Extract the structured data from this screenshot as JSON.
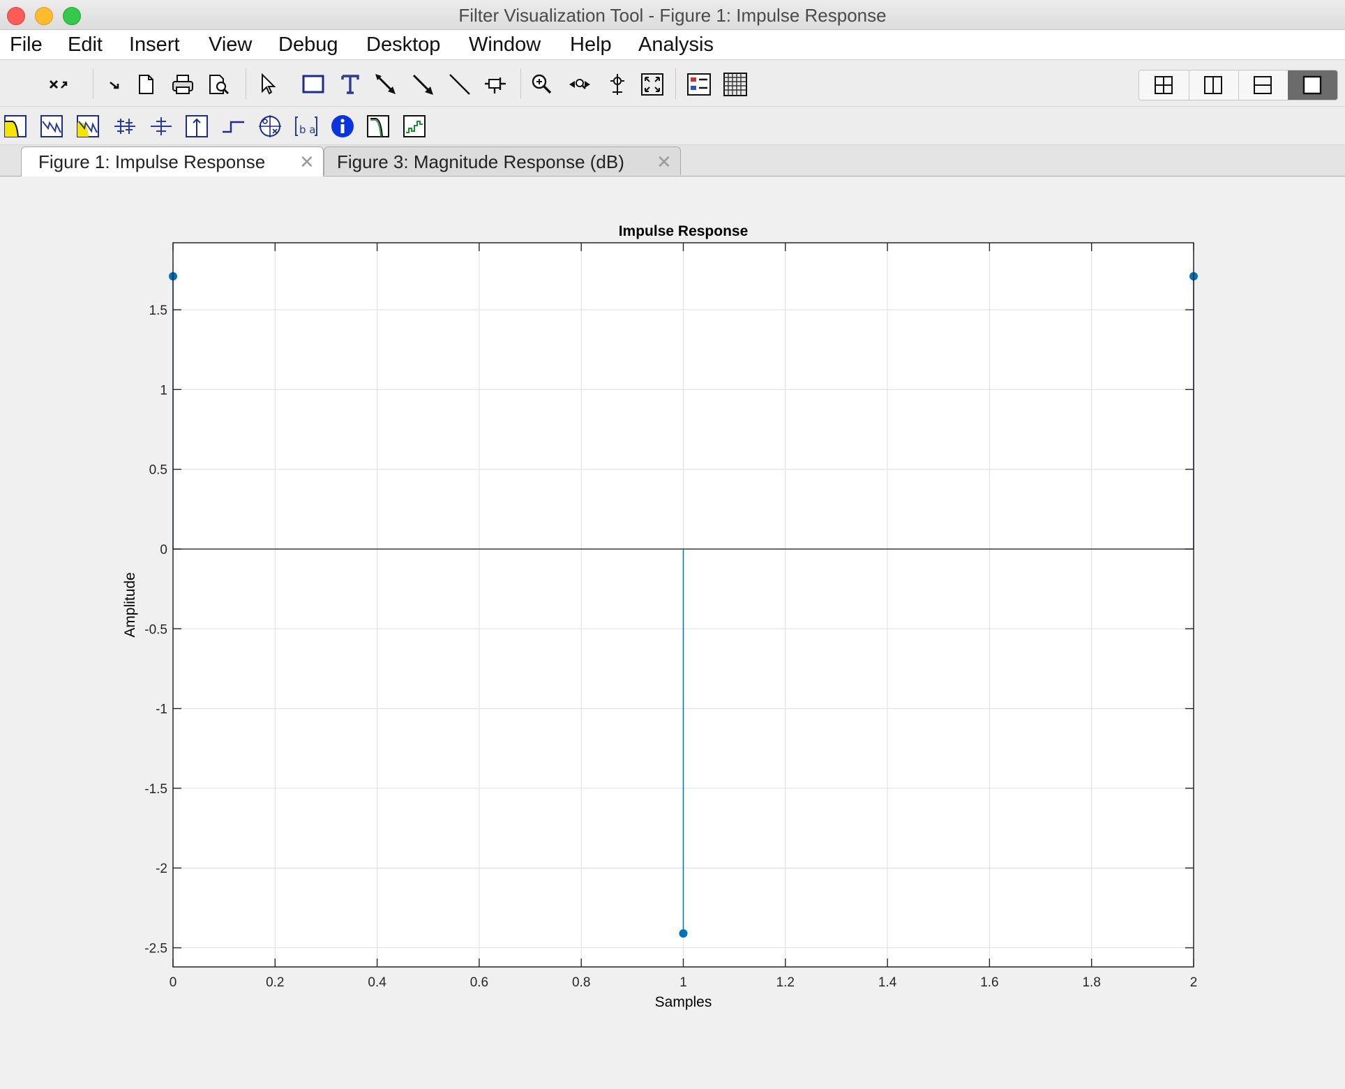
{
  "window": {
    "title": "Filter Visualization Tool - Figure 1: Impulse Response"
  },
  "menu": [
    "File",
    "Edit",
    "Insert",
    "View",
    "Debug",
    "Desktop",
    "Window",
    "Help",
    "Analysis"
  ],
  "toolbar": {
    "primary_icons": [
      "undock-icon",
      "dock-arrow-icon",
      "new-figure-icon",
      "print-icon",
      "print-preview-icon",
      "select-arrow-icon",
      "rectangle-icon",
      "text-icon",
      "arrow-icon",
      "double-arrow-icon",
      "line-icon",
      "pin-icon",
      "zoom-in-icon",
      "pan-icon",
      "data-cursor-icon",
      "zoom-fit-icon",
      "legend-icon",
      "grid-icon"
    ],
    "analysis_icons": [
      "magnitude-response-icon",
      "phase-response-icon",
      "magnitude-phase-icon",
      "group-delay-icon",
      "phase-delay-icon",
      "impulse-response-icon",
      "step-response-icon",
      "pole-zero-icon",
      "filter-coefficients-icon",
      "filter-info-icon",
      "magnitude-estimate-icon",
      "round-off-noise-icon"
    ],
    "layout_icons": [
      "layout-grid-2x2-icon",
      "layout-columns-icon",
      "layout-rows-icon",
      "layout-single-icon"
    ]
  },
  "tabs": [
    {
      "label": "Figure 1: Impulse Response",
      "active": true
    },
    {
      "label": "Figure 3: Magnitude Response (dB)",
      "active": false
    }
  ],
  "chart_data": {
    "type": "stem",
    "title": "Impulse Response",
    "xlabel": "Samples",
    "ylabel": "Amplitude",
    "x": [
      0,
      1,
      2
    ],
    "values": [
      1.71,
      -2.41,
      1.71
    ],
    "xlim": [
      0,
      2
    ],
    "ylim": [
      -2.62,
      1.92
    ],
    "xticks": [
      0,
      0.2,
      0.4,
      0.6,
      0.8,
      1,
      1.2,
      1.4,
      1.6,
      1.8,
      2
    ],
    "xtick_labels": [
      "0",
      "0.2",
      "0.4",
      "0.6",
      "0.8",
      "1",
      "1.2",
      "1.4",
      "1.6",
      "1.8",
      "2"
    ],
    "yticks": [
      -2.5,
      -2,
      -1.5,
      -1,
      -0.5,
      0,
      0.5,
      1,
      1.5
    ],
    "ytick_labels": [
      "-2.5",
      "-2",
      "-1.5",
      "-1",
      "-0.5",
      "0",
      "0.5",
      "1",
      "1.5"
    ],
    "grid": true,
    "series_color": "#0072bd"
  }
}
